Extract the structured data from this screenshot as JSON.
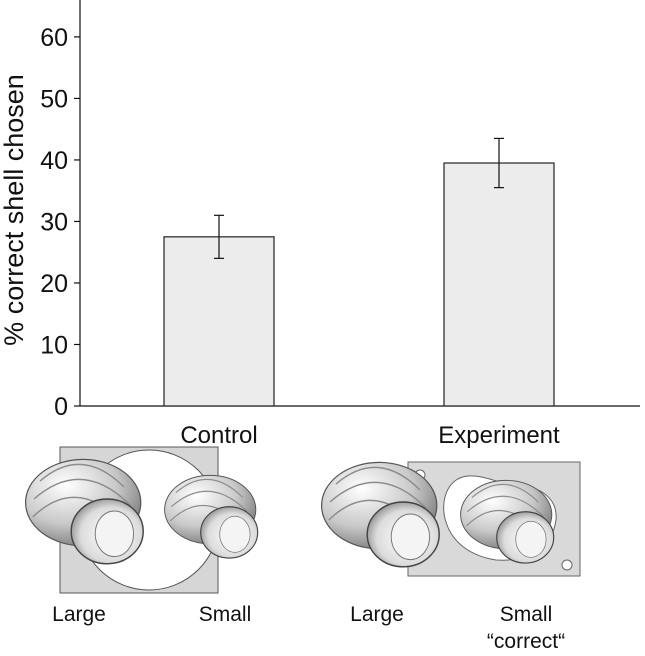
{
  "chart_data": {
    "type": "bar",
    "categories": [
      "Control",
      "Experiment"
    ],
    "values": [
      27.5,
      39.5
    ],
    "error": [
      3.5,
      4.0
    ],
    "ylabel": "% correct shell chosen",
    "xlabel": "",
    "ylim": [
      0,
      66
    ],
    "yticks": [
      0,
      10,
      20,
      30,
      40,
      50,
      60
    ],
    "bar_color": "#ececec",
    "edge_color": "#222222"
  },
  "illustrations": {
    "control": {
      "large_label": "Large",
      "small_label": "Small"
    },
    "experiment": {
      "large_label": "Large",
      "small_label": "Small",
      "correct_label": "“correct“"
    }
  },
  "colors": {
    "panel_fill": "#d6d6d6",
    "shell_fill": "#cfcfcf"
  }
}
